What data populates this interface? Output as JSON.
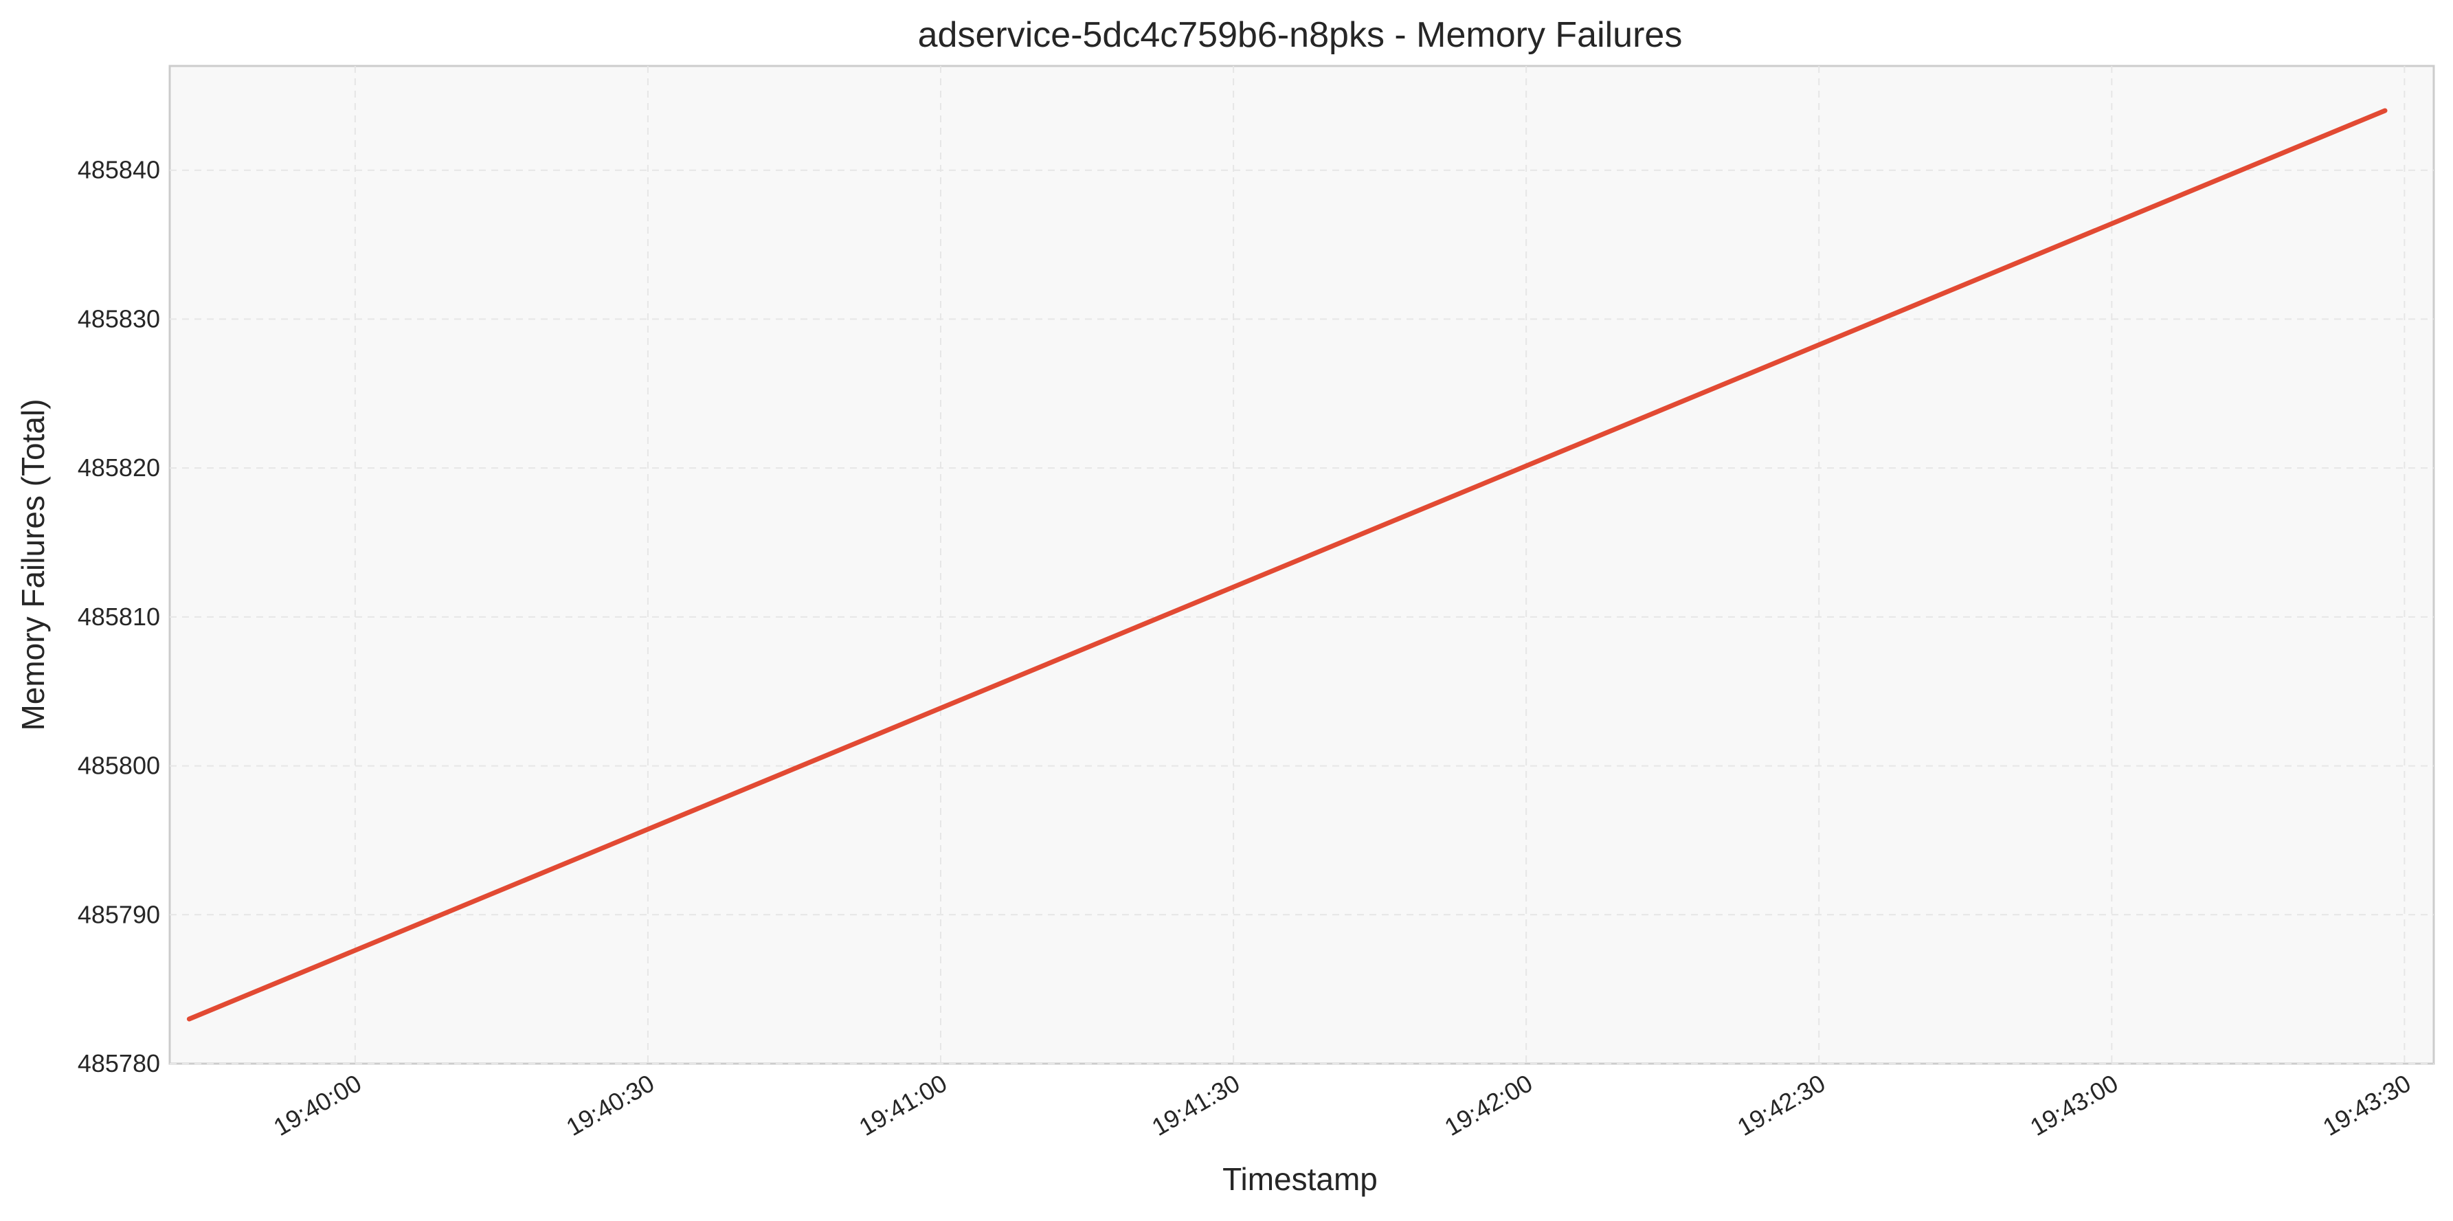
{
  "chart_data": {
    "type": "line",
    "title": "adservice-5dc4c759b6-n8pks - Memory Failures",
    "xlabel": "Timestamp",
    "ylabel": "Memory Failures (Total)",
    "x_ticks": [
      "19:40:00",
      "19:40:30",
      "19:41:00",
      "19:41:30",
      "19:42:00",
      "19:42:30",
      "19:43:00",
      "19:43:30"
    ],
    "x_range": [
      "19:39:41",
      "19:43:33"
    ],
    "y_ticks": [
      485780,
      485790,
      485800,
      485810,
      485820,
      485830,
      485840
    ],
    "ylim": [
      485780,
      485847
    ],
    "grid": true,
    "series": [
      {
        "color": "#e24a33",
        "points": [
          {
            "x": "19:39:43",
            "y": 485783
          },
          {
            "x": "19:43:28",
            "y": 485844
          }
        ]
      }
    ]
  }
}
